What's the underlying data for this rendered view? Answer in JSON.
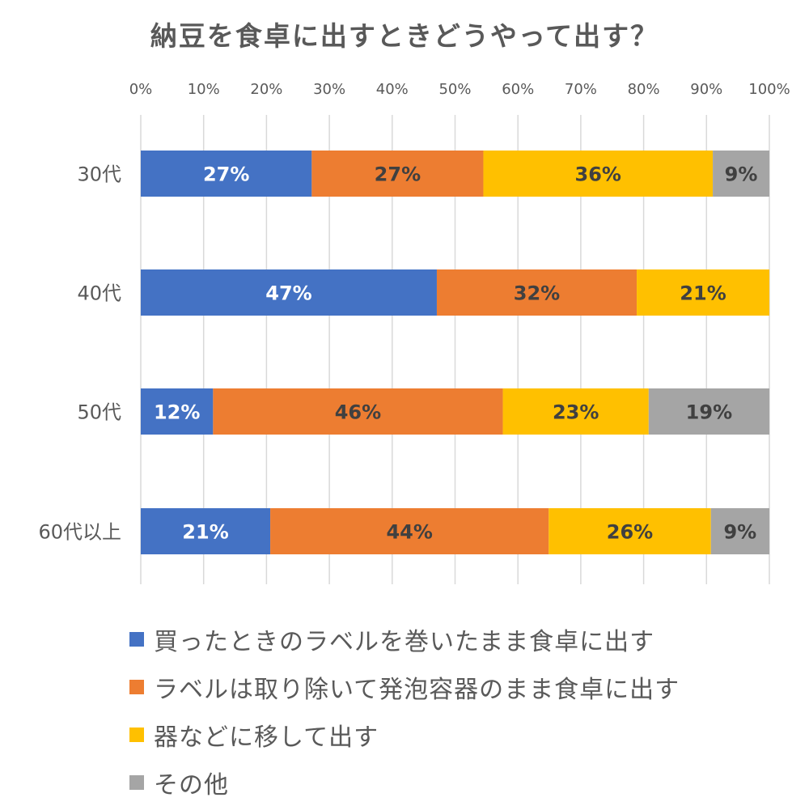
{
  "chart_data": {
    "type": "bar",
    "orientation": "horizontal",
    "stacked": "percent",
    "title": "納豆を食卓に出すときどうやって出す？",
    "categories": [
      "30代",
      "40代",
      "50代",
      "60代以上"
    ],
    "x_ticks": [
      "0%",
      "10%",
      "20%",
      "30%",
      "40%",
      "50%",
      "60%",
      "70%",
      "80%",
      "90%",
      "100%"
    ],
    "xlim": [
      0,
      100
    ],
    "grid": "vertical",
    "legend_position": "bottom",
    "series": [
      {
        "name": "買ったときのラベルを巻いたまま食卓に出す",
        "color": "#4472C4",
        "label_color": "#FFFFFF",
        "values": [
          27.2,
          47.1,
          11.5,
          20.6
        ],
        "labels": [
          "27%",
          "47%",
          "12%",
          "21%"
        ]
      },
      {
        "name": "ラベルは取り除いて発泡容器のまま食卓に出す",
        "color": "#ED7D31",
        "label_color": "#404040",
        "values": [
          27.3,
          31.8,
          46.1,
          44.3
        ],
        "labels": [
          "27%",
          "32%",
          "46%",
          "44%"
        ]
      },
      {
        "name": "器などに移して出す",
        "color": "#FFC000",
        "label_color": "#404040",
        "values": [
          36.5,
          21.1,
          23.2,
          25.8
        ],
        "labels": [
          "36%",
          "21%",
          "23%",
          "26%"
        ]
      },
      {
        "name": "その他",
        "color": "#A5A5A5",
        "label_color": "#404040",
        "values": [
          9.0,
          0,
          19.2,
          9.3
        ],
        "labels": [
          "9%",
          "",
          "19%",
          "9%"
        ]
      }
    ]
  }
}
